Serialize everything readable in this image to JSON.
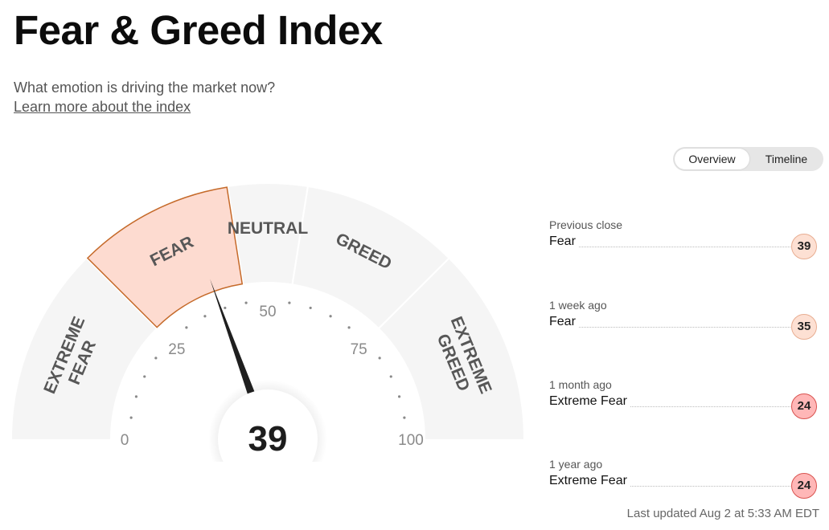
{
  "header": {
    "title": "Fear & Greed Index",
    "subtitle": "What emotion is driving the market now?",
    "learn_more": "Learn more about the index"
  },
  "view_toggle": {
    "options": [
      "Overview",
      "Timeline"
    ],
    "selected": "Overview"
  },
  "gauge": {
    "value": 39,
    "value_label": "39",
    "current_zone": "Fear",
    "zones": [
      {
        "line1": "EXTREME",
        "line2": "FEAR"
      },
      {
        "line1": "FEAR"
      },
      {
        "line1": "NEUTRAL"
      },
      {
        "line1": "GREED"
      },
      {
        "line1": "EXTREME",
        "line2": "GREED"
      }
    ],
    "tick_labels": [
      "0",
      "25",
      "50",
      "75",
      "100"
    ],
    "colors": {
      "zone_bg": "#f5f5f5",
      "active_fill": "#fddbd0",
      "active_stroke": "#c56a2a",
      "zone_text": "#575757",
      "needle": "#1f1f1f"
    }
  },
  "history": [
    {
      "when": "Previous close",
      "label": "Fear",
      "value": "39",
      "level": "fear"
    },
    {
      "when": "1 week ago",
      "label": "Fear",
      "value": "35",
      "level": "fear"
    },
    {
      "when": "1 month ago",
      "label": "Extreme Fear",
      "value": "24",
      "level": "extreme-fear"
    },
    {
      "when": "1 year ago",
      "label": "Extreme Fear",
      "value": "24",
      "level": "extreme-fear"
    }
  ],
  "last_updated": "Last updated Aug 2 at 5:33 AM EDT"
}
